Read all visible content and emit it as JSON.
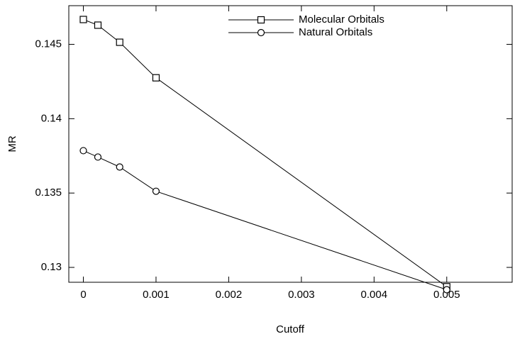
{
  "chart_data": {
    "type": "line",
    "x_label": "Cutoff",
    "y_label": "MR",
    "xlim": [
      -0.0002,
      0.0059
    ],
    "ylim": [
      0.129,
      0.1476
    ],
    "xticks": [
      0,
      0.001,
      0.002,
      0.003,
      0.004,
      0.005
    ],
    "yticks": [
      0.13,
      0.135,
      0.14,
      0.145
    ],
    "legend": "top",
    "series": [
      {
        "name": "Molecular Orbitals",
        "color": "#000000",
        "marker": "square",
        "x": [
          0,
          0.0002,
          0.0005,
          0.001,
          0.005
        ],
        "values": [
          0.14667,
          0.14629,
          0.14514,
          0.14275,
          0.1287
        ]
      },
      {
        "name": "Natural Orbitals",
        "color": "#000000",
        "marker": "circle",
        "x": [
          0,
          0.0002,
          0.0005,
          0.001,
          0.005
        ],
        "values": [
          0.13785,
          0.13742,
          0.13675,
          0.13512,
          0.1285
        ]
      }
    ]
  }
}
